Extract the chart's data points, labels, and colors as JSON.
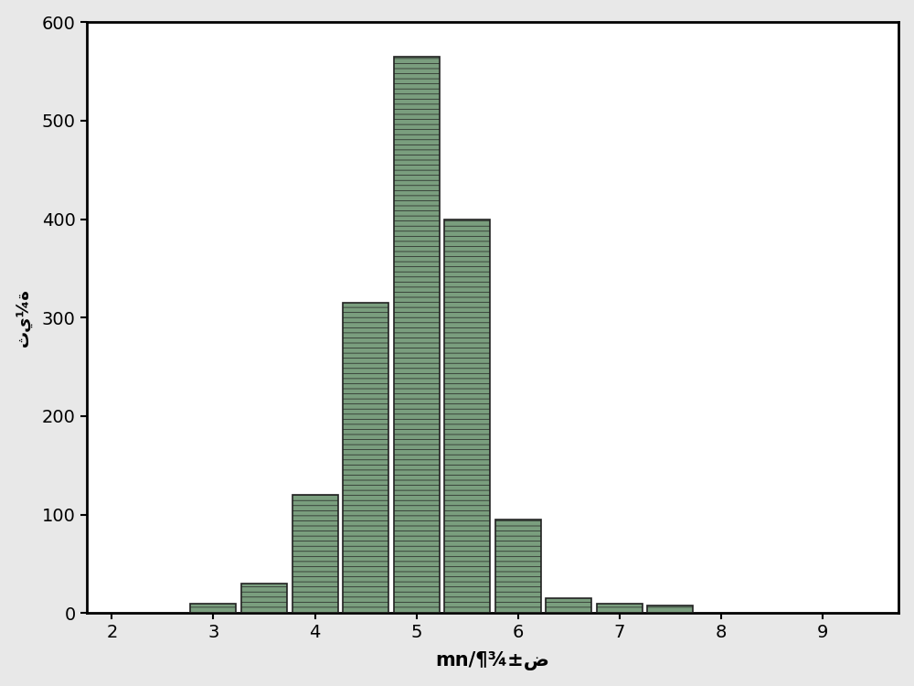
{
  "bar_centers": [
    3.0,
    3.5,
    4.0,
    4.5,
    5.0,
    5.5,
    6.0,
    6.5,
    7.0,
    7.5
  ],
  "bar_heights": [
    10,
    30,
    120,
    315,
    565,
    400,
    95,
    15,
    10,
    8
  ],
  "bar_width": 0.45,
  "bar_facecolor": "#7a9e7e",
  "bar_edgecolor": "#222222",
  "bar_linewidth": 1.2,
  "xlim": [
    1.75,
    9.75
  ],
  "ylim": [
    0,
    600
  ],
  "xticks": [
    2,
    3,
    4,
    5,
    6,
    7,
    8,
    9
  ],
  "yticks": [
    0,
    100,
    200,
    300,
    400,
    500,
    600
  ],
  "xlabel": "mn/¶¾±ض",
  "ylabel": "ثي¼ة",
  "xlabel_fontsize": 15,
  "ylabel_fontsize": 13,
  "tick_fontsize": 14,
  "background_color": "#ffffff",
  "figure_facecolor": "#e8e8e8",
  "spine_linewidth": 2.0,
  "figsize": [
    10.0,
    7.5
  ],
  "dpi": 100
}
